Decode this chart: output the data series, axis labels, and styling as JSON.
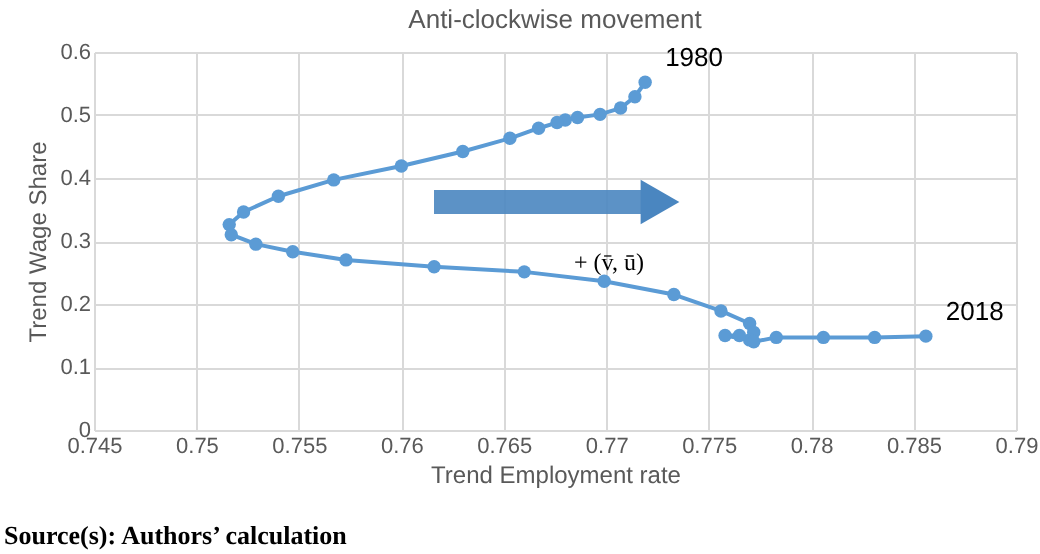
{
  "chart_data": {
    "type": "line",
    "title": "Anti-clockwise movement",
    "xlabel": "Trend Employment rate",
    "ylabel": "Trend Wage Share",
    "x": [
      0.7719,
      0.7714,
      0.7707,
      0.7697,
      0.7686,
      0.768,
      0.7676,
      0.7667,
      0.7653,
      0.763,
      0.76,
      0.7567,
      0.754,
      0.7523,
      0.7516,
      0.7517,
      0.7529,
      0.7547,
      0.7573,
      0.7616,
      0.766,
      0.7699,
      0.7733,
      0.7756,
      0.777,
      0.7772,
      0.777,
      0.7758,
      0.7765,
      0.7772,
      0.7783,
      0.7806,
      0.7831,
      0.7856
    ],
    "series": [
      {
        "color": "#5b9bd5",
        "values": [
          0.552,
          0.529,
          0.511,
          0.501,
          0.496,
          0.492,
          0.488,
          0.479,
          0.463,
          0.442,
          0.419,
          0.397,
          0.371,
          0.346,
          0.326,
          0.31,
          0.295,
          0.283,
          0.27,
          0.259,
          0.251,
          0.236,
          0.215,
          0.189,
          0.169,
          0.155,
          0.143,
          0.15,
          0.15,
          0.14,
          0.147,
          0.147,
          0.147,
          0.149
        ]
      }
    ],
    "xlim": [
      0.745,
      0.79
    ],
    "xticks": [
      0.745,
      0.75,
      0.755,
      0.76,
      0.765,
      0.77,
      0.775,
      0.78,
      0.785,
      0.79
    ],
    "ylim": [
      0,
      0.6
    ],
    "yticks": [
      0,
      0.1,
      0.2,
      0.3,
      0.4,
      0.5,
      0.6
    ],
    "grid": true,
    "marker": "circle",
    "line_style": "solid",
    "annotations": [
      {
        "text": "1980",
        "x": 0.7719,
        "y": 0.552
      },
      {
        "text": "2018",
        "x": 0.7856,
        "y": 0.149
      },
      "+ (v̄, ū)",
      "Source(s): Authors’ calculation"
    ]
  }
}
